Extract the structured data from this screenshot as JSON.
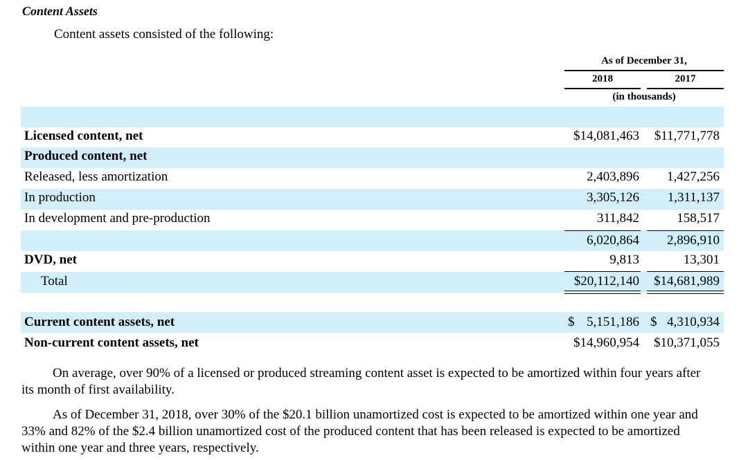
{
  "heading": "Content Assets",
  "intro": "Content assets consisted of the following:",
  "table": {
    "header_group": "As of December 31,",
    "col_2018": "2018",
    "col_2017": "2017",
    "units": "(in thousands)",
    "rows": [
      {
        "label": "Licensed content, net",
        "v2018": "$14,081,463",
        "v2017": "$11,771,778"
      },
      {
        "label": "Produced content, net"
      },
      {
        "label": "Released, less amortization",
        "v2018": "2,403,896",
        "v2017": "1,427,256"
      },
      {
        "label": "In production",
        "v2018": "3,305,126",
        "v2017": "1,311,137"
      },
      {
        "label": "In development and pre-production",
        "v2018": "311,842",
        "v2017": "158,517"
      },
      {
        "label": "",
        "v2018": "6,020,864",
        "v2017": "2,896,910"
      },
      {
        "label": "DVD, net",
        "v2018": "9,813",
        "v2017": "13,301"
      },
      {
        "label": "Total",
        "v2018": "$20,112,140",
        "v2017": "$14,681,989"
      }
    ],
    "current": {
      "label": "Current content assets, net",
      "sign": "$",
      "v2018": "5,151,186",
      "v2017": "4,310,934"
    },
    "noncurrent": {
      "label": "Non-current content assets, net",
      "v2018": "$14,960,954",
      "v2017": "$10,371,055"
    }
  },
  "paragraphs": [
    "On average, over 90% of a licensed or produced streaming content asset is expected to be amortized within four years after its month of first availability.",
    "As of December 31, 2018, over 30% of the $20.1 billion unamortized cost is expected to be amortized within one year and 33% and 82% of the $2.4 billion unamortized cost of the produced content that has been released is expected to be amortized within one year and three years, respectively."
  ]
}
